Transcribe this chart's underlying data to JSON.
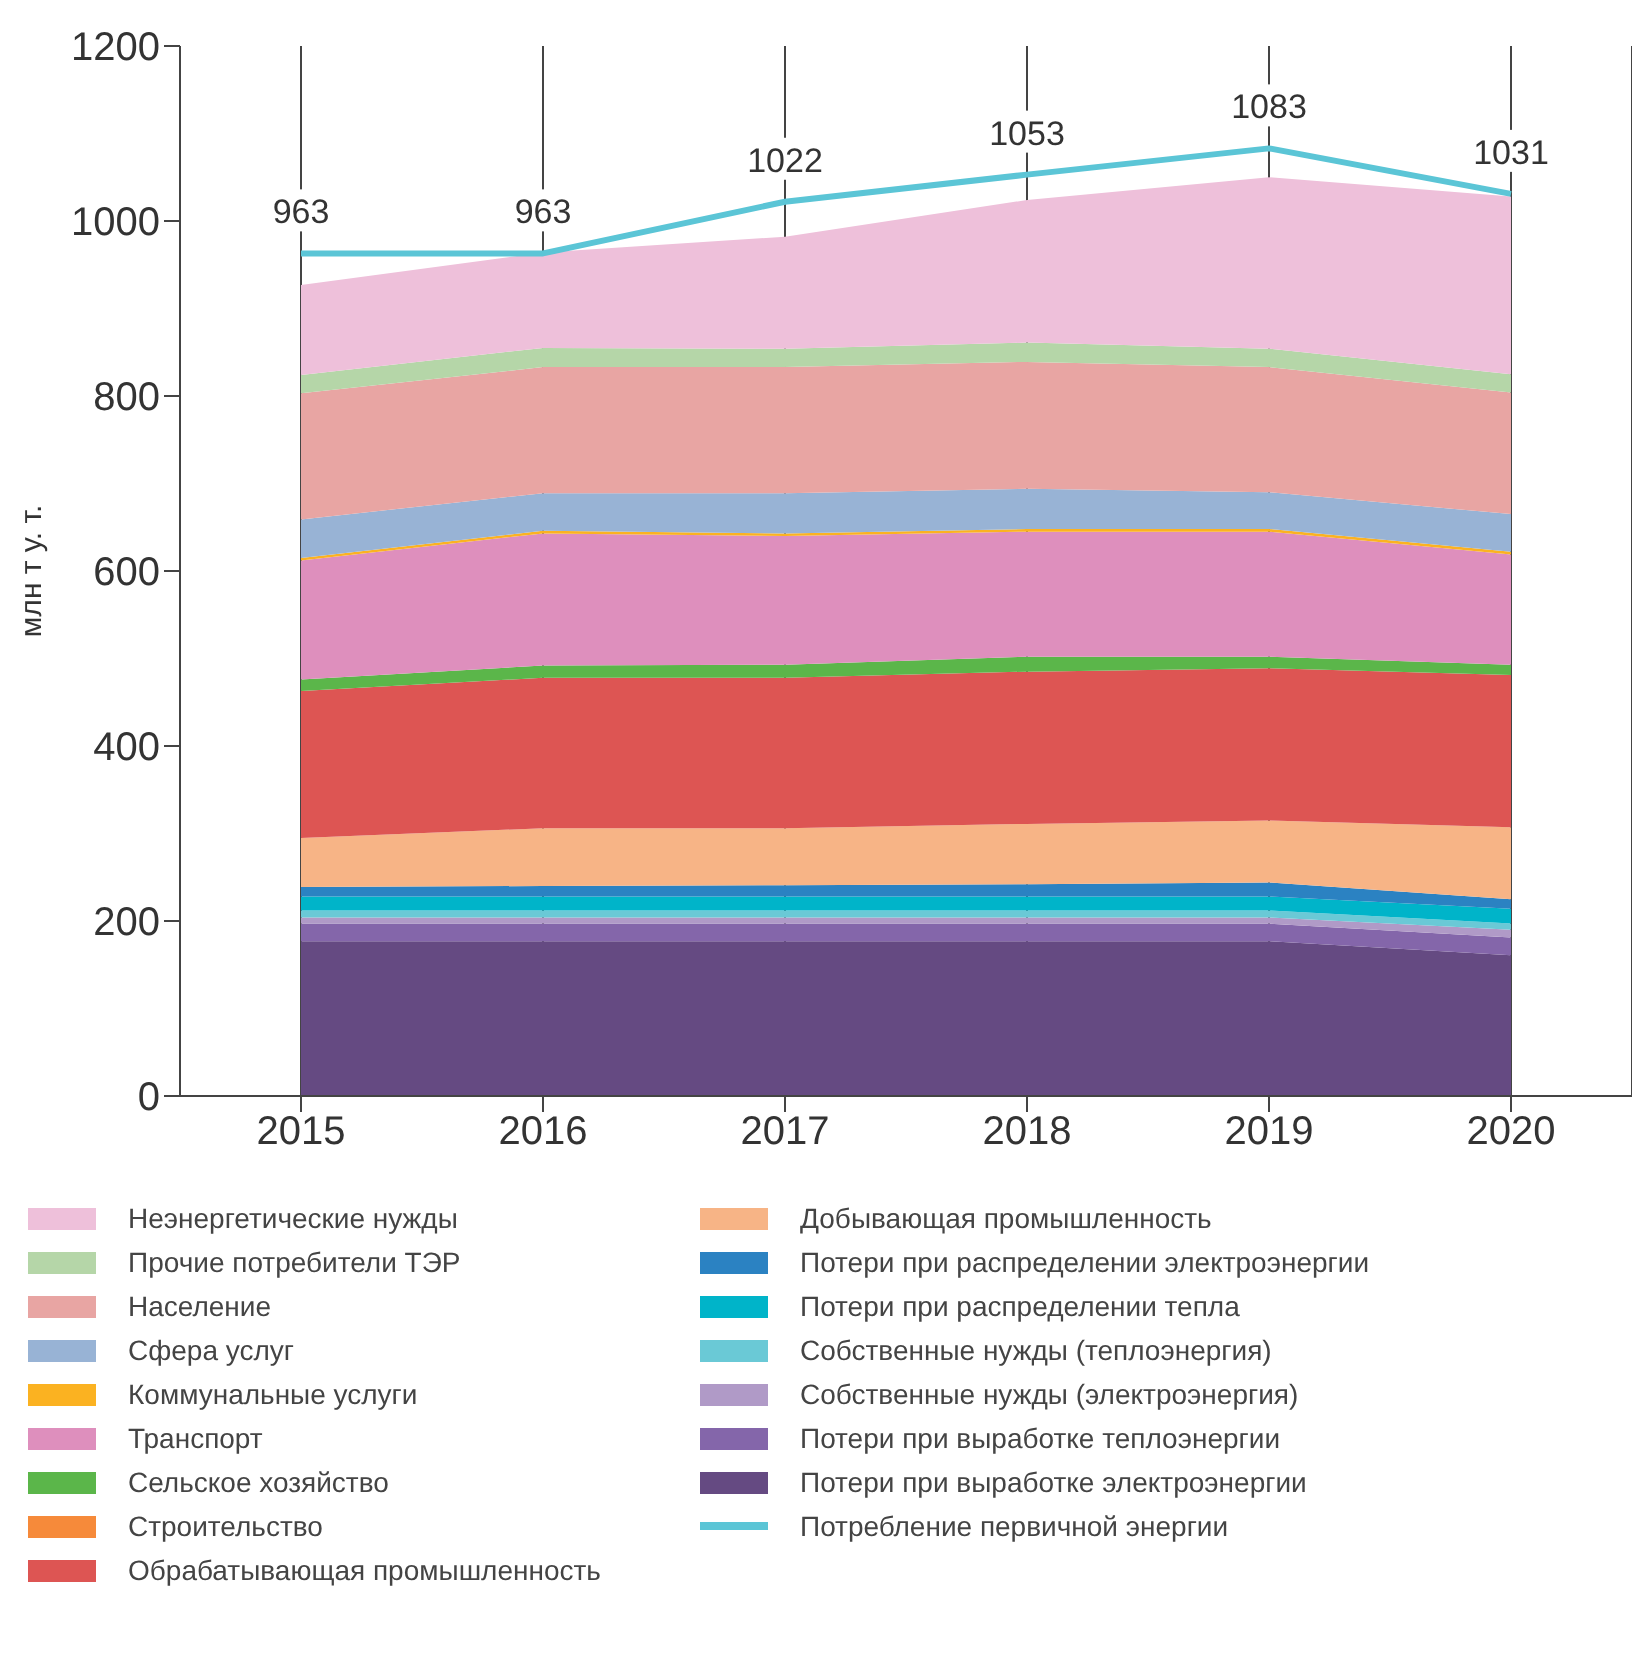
{
  "chart_data": {
    "type": "area",
    "stacked": true,
    "categories": [
      "2015",
      "2016",
      "2017",
      "2018",
      "2019",
      "2020"
    ],
    "ylabel": "млн т у. т.",
    "ylim": [
      0,
      1200
    ],
    "yticks": [
      0,
      200,
      400,
      600,
      800,
      1000,
      1200
    ],
    "grid": "x",
    "legend": "bottom",
    "series": [
      {
        "name": "Потери при выработке электроэнергии",
        "color": "#654a82",
        "values": [
          177,
          177,
          177,
          177,
          177,
          161
        ]
      },
      {
        "name": "Потери при выработке теплоэнергии",
        "color": "#8466aa",
        "values": [
          20,
          20,
          20,
          20,
          20,
          20
        ]
      },
      {
        "name": "Собственные нужды (электроэнергия)",
        "color": "#b09ac7",
        "values": [
          7,
          7,
          7,
          7,
          7,
          9
        ]
      },
      {
        "name": "Собственные нужды (теплоэнергия)",
        "color": "#6ac9d6",
        "values": [
          8,
          8,
          8,
          8,
          8,
          7
        ]
      },
      {
        "name": "Потери при распределении тепла",
        "color": "#00b4c9",
        "values": [
          16,
          16,
          16,
          16,
          16,
          17
        ]
      },
      {
        "name": "Потери при распределении электроэнергии",
        "color": "#2b82c2",
        "values": [
          11,
          12,
          13,
          14,
          16,
          11
        ]
      },
      {
        "name": "Добывающая промышленность",
        "color": "#f7b486",
        "values": [
          56,
          66,
          65,
          69,
          71,
          82
        ]
      },
      {
        "name": "Обрабатывающая промышленность",
        "color": "#dd5553",
        "values": [
          168,
          172,
          172,
          174,
          174,
          174
        ]
      },
      {
        "name": "Строительство",
        "color": "#f68a3a",
        "values": [
          null,
          null,
          null,
          null,
          null,
          null
        ]
      },
      {
        "name": "Сельское хозяйство",
        "color": "#5bb64a",
        "values": [
          13,
          14,
          15,
          17,
          13,
          12
        ]
      },
      {
        "name": "Транспорт",
        "color": "#de8fbd",
        "values": [
          136,
          151,
          147,
          143,
          143,
          126
        ]
      },
      {
        "name": "Коммунальные услуги",
        "color": "#fbb221",
        "values": [
          3,
          3,
          3,
          3,
          3,
          3
        ]
      },
      {
        "name": "Сфера услуг",
        "color": "#98b3d5",
        "values": [
          44,
          43,
          46,
          46,
          42,
          43
        ]
      },
      {
        "name": "Население",
        "color": "#e8a5a3",
        "values": [
          144,
          144,
          144,
          145,
          143,
          139
        ]
      },
      {
        "name": "Прочие потребители ТЭР",
        "color": "#b5d6a8",
        "values": [
          21,
          22,
          21,
          22,
          21,
          21
        ]
      },
      {
        "name": "Неэнергетические нужды",
        "color": "#eec0da",
        "values": [
          103,
          109,
          128,
          163,
          196,
          203
        ]
      },
      {
        "name": "Потребление первичной энергии",
        "type": "line",
        "color": "#5bc5d6",
        "values": [
          963,
          963,
          1022,
          1053,
          1083,
          1031
        ],
        "value_labels": [
          "963",
          "963",
          "1022",
          "1053",
          "1083",
          "1031"
        ]
      }
    ]
  }
}
